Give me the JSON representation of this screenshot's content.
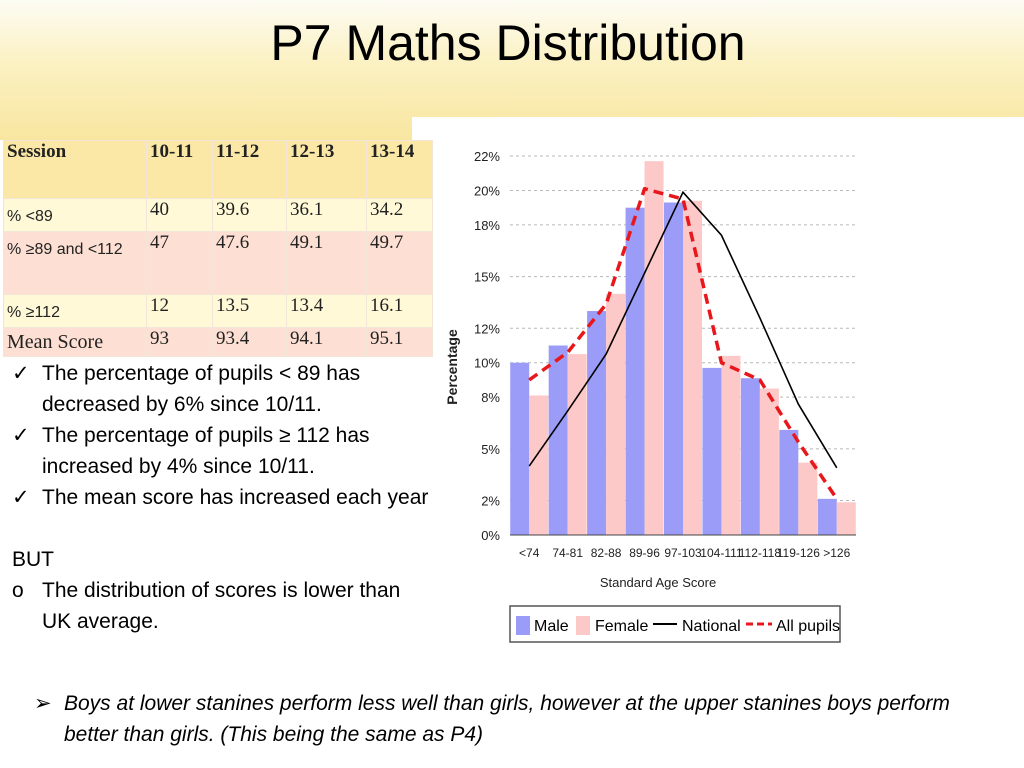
{
  "slide": {
    "title": "P7 Maths Distribution"
  },
  "table": {
    "header": [
      "Session",
      "10-11",
      "11-12",
      "12-13",
      "13-14"
    ],
    "rows": [
      {
        "label": "% <89",
        "values": [
          "40",
          "39.6",
          "36.1",
          "34.2"
        ]
      },
      {
        "label": "% ≥89 and <112",
        "values": [
          "47",
          "47.6",
          "49.1",
          "49.7"
        ]
      },
      {
        "label": "% ≥112",
        "values": [
          "12",
          "13.5",
          "13.4",
          "16.1"
        ]
      },
      {
        "label": "Mean Score",
        "values": [
          "93",
          "93.4",
          "94.1",
          "95.1"
        ]
      }
    ]
  },
  "bullets": {
    "check_items": [
      "The percentage of pupils < 89 has decreased by 6% since 10/11.",
      "The percentage of pupils ≥ 112 has increased by 4% since 10/11.",
      "The mean score has increased each year"
    ],
    "but_label": "BUT",
    "circle_items": [
      "The distribution of scores is lower than UK average."
    ]
  },
  "note": "Boys at lower stanines perform less well than girls, however at the upper stanines boys perform better than girls. (This being the same as P4)",
  "colors": {
    "male": "#9a9cf8",
    "female": "#fcc8c8",
    "national": "#000000",
    "all_pupils": "#e8171c",
    "header_text": "#c45a0b"
  },
  "chart_data": {
    "type": "bar",
    "xlabel": "Standard Age Score",
    "ylabel": "Percentage",
    "ylim": [
      0,
      22
    ],
    "yticks": [
      0,
      2,
      5,
      8,
      10,
      12,
      15,
      18,
      20,
      22
    ],
    "ytick_labels": [
      "0%",
      "2%",
      "5%",
      "8%",
      "10%",
      "12%",
      "15%",
      "18%",
      "20%",
      "22%"
    ],
    "grid": true,
    "legend_position": "bottom",
    "categories": [
      "<74",
      "74-81",
      "82-88",
      "89-96",
      "97-103",
      "104-111",
      "112-118",
      "119-126",
      ">126"
    ],
    "series": [
      {
        "name": "Male",
        "kind": "bar",
        "values": [
          10.0,
          11.0,
          13.0,
          19.0,
          19.3,
          9.7,
          9.1,
          6.1,
          2.1
        ]
      },
      {
        "name": "Female",
        "kind": "bar",
        "values": [
          8.1,
          10.5,
          14.0,
          21.7,
          19.4,
          10.4,
          8.5,
          4.2,
          1.9
        ]
      },
      {
        "name": "National",
        "kind": "line",
        "values": [
          4.0,
          7.2,
          10.5,
          15.2,
          19.9,
          17.4,
          12.6,
          7.6,
          3.9
        ]
      },
      {
        "name": "All pupils",
        "kind": "dashed-line",
        "values": [
          9.0,
          10.6,
          13.4,
          20.1,
          19.5,
          10.0,
          9.0,
          5.4,
          2.1
        ]
      }
    ]
  }
}
